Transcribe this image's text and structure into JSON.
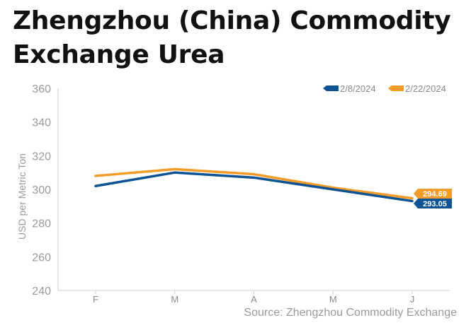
{
  "title": "Zhengzhou (China) Commodity Exchange Urea",
  "source": "Source: Zhengzhou Commodity Exchange",
  "colors": {
    "series1": "#0b5394",
    "series2": "#f39c28",
    "axis": "#cfcfcf",
    "text": "#9a9a9a"
  },
  "chart_data": {
    "type": "line",
    "title": "Zhengzhou (China) Commodity Exchange Urea",
    "ylabel": "USD per Metric Ton",
    "xlabel": "",
    "categories": [
      "F",
      "M",
      "A",
      "M",
      "J"
    ],
    "yticks": [
      "240",
      "260",
      "280",
      "300",
      "320",
      "340",
      "360"
    ],
    "ylim": [
      240,
      360
    ],
    "grid": false,
    "legend_position": "top-right",
    "series": [
      {
        "name": "2/8/2024",
        "values": [
          302,
          310,
          307,
          300,
          293.05
        ],
        "end_label": "293.05",
        "color": "#0b5394"
      },
      {
        "name": "2/22/2024",
        "values": [
          308,
          312,
          309,
          301,
          294.69
        ],
        "end_label": "294.69",
        "color": "#f39c28"
      }
    ]
  }
}
